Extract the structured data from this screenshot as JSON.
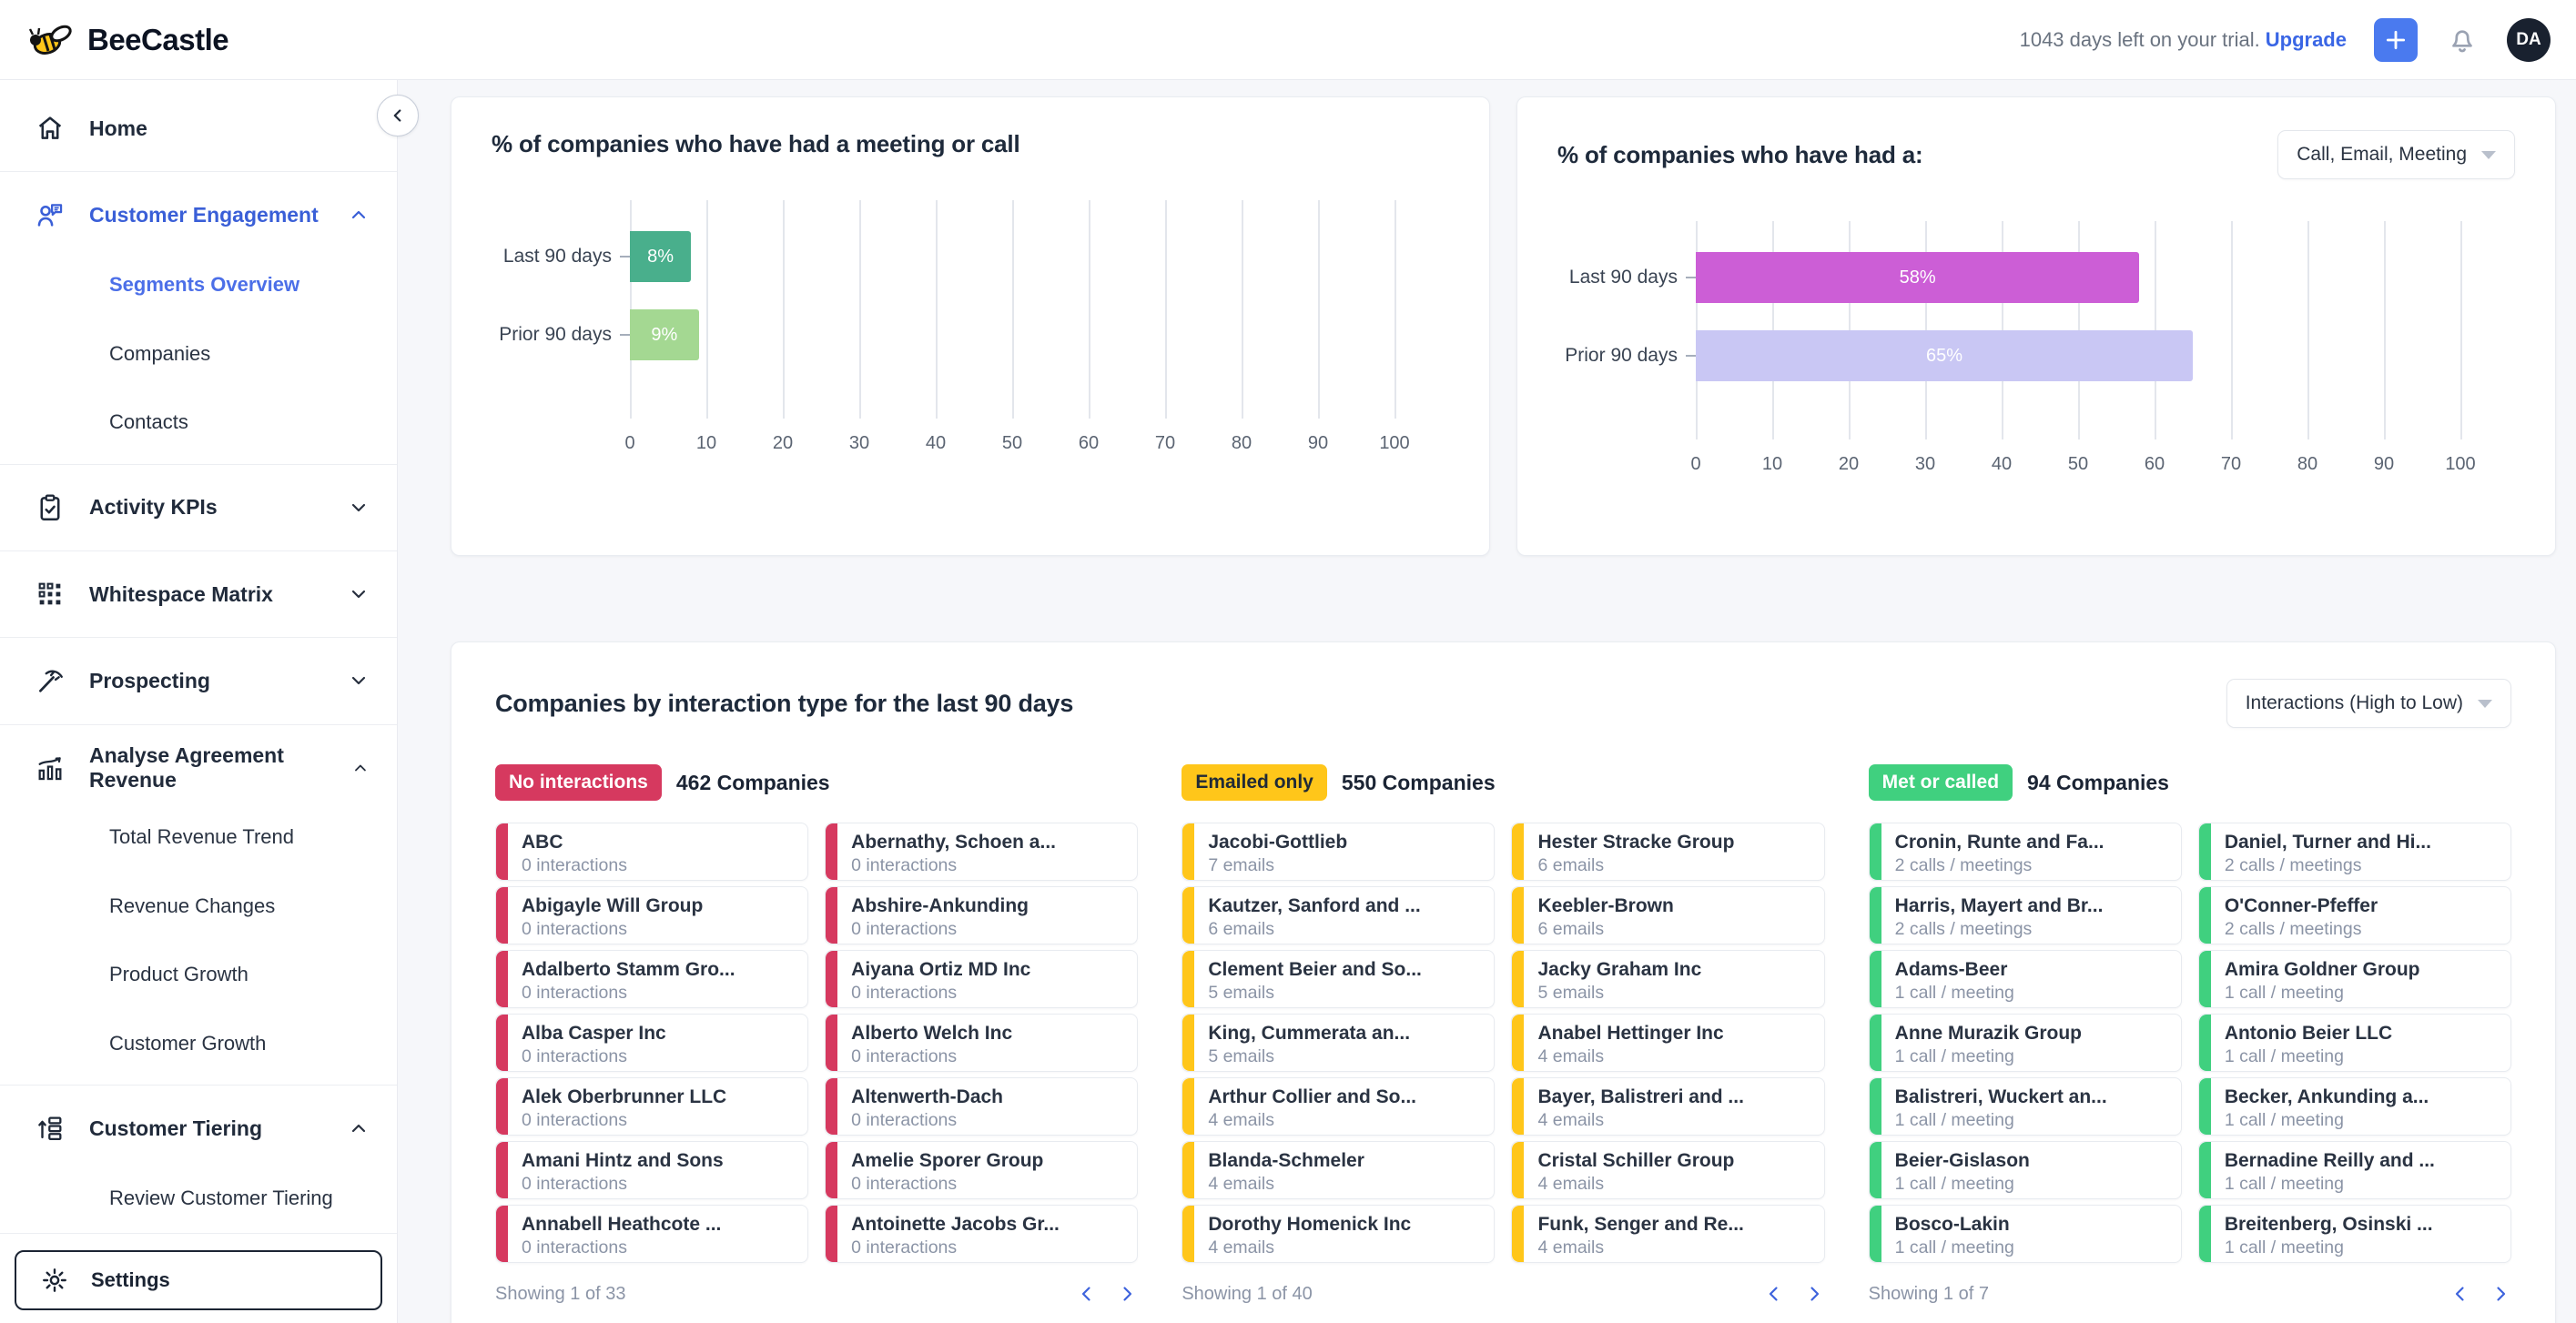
{
  "topbar": {
    "brand": "BeeCastle",
    "trial_text": "1043 days left on your trial.",
    "upgrade_label": "Upgrade",
    "avatar_initials": "DA"
  },
  "sidebar": {
    "items": [
      {
        "label": "Home"
      },
      {
        "label": "Customer Engagement",
        "expanded": true,
        "active": true,
        "children": [
          "Segments Overview",
          "Companies",
          "Contacts"
        ],
        "active_child": "Segments Overview"
      },
      {
        "label": "Activity KPIs",
        "expanded": false
      },
      {
        "label": "Whitespace Matrix",
        "expanded": false
      },
      {
        "label": "Prospecting",
        "expanded": false
      },
      {
        "label": "Analyse Agreement Revenue",
        "expanded": true,
        "children": [
          "Total Revenue Trend",
          "Revenue Changes",
          "Product Growth",
          "Customer Growth"
        ]
      },
      {
        "label": "Customer Tiering",
        "expanded": true,
        "children": [
          "Review Customer Tiering"
        ]
      }
    ],
    "settings_label": "Settings"
  },
  "chart_data": [
    {
      "type": "bar",
      "orientation": "horizontal",
      "title": "% of companies who have had a meeting or call",
      "categories": [
        "Last 90 days",
        "Prior 90 days"
      ],
      "values": [
        8,
        9
      ],
      "value_labels": [
        "8%",
        "9%"
      ],
      "colors": [
        "#49AF8C",
        "#A4D892"
      ],
      "xlim": [
        0,
        100
      ],
      "x_ticks": [
        0,
        10,
        20,
        30,
        40,
        50,
        60,
        70,
        80,
        90,
        100
      ],
      "grid": "vertical"
    },
    {
      "type": "bar",
      "orientation": "horizontal",
      "title": "% of companies who have had a:",
      "filter_label": "Call, Email, Meeting",
      "categories": [
        "Last 90 days",
        "Prior 90 days"
      ],
      "values": [
        58,
        65
      ],
      "value_labels": [
        "58%",
        "65%"
      ],
      "colors": [
        "#CC5ED6",
        "#C9C7F4"
      ],
      "xlim": [
        0,
        100
      ],
      "x_ticks": [
        0,
        10,
        20,
        30,
        40,
        50,
        60,
        70,
        80,
        90,
        100
      ],
      "grid": "vertical"
    }
  ],
  "section": {
    "title": "Companies by interaction type for the last 90 days",
    "sort_label": "Interactions (High to Low)",
    "groups": [
      {
        "badge": "No interactions",
        "badge_color": "#D6395F",
        "badge_text_color": "#FFFFFF",
        "count": "462 Companies",
        "footer": "Showing 1 of 33",
        "cards": [
          {
            "name": "ABC",
            "sub": "0 interactions"
          },
          {
            "name": "Abernathy, Schoen a...",
            "sub": "0 interactions"
          },
          {
            "name": "Abigayle Will Group",
            "sub": "0 interactions"
          },
          {
            "name": "Abshire-Ankunding",
            "sub": "0 interactions"
          },
          {
            "name": "Adalberto Stamm Gro...",
            "sub": "0 interactions"
          },
          {
            "name": "Aiyana Ortiz MD Inc",
            "sub": "0 interactions"
          },
          {
            "name": "Alba Casper Inc",
            "sub": "0 interactions"
          },
          {
            "name": "Alberto Welch Inc",
            "sub": "0 interactions"
          },
          {
            "name": "Alek Oberbrunner LLC",
            "sub": "0 interactions"
          },
          {
            "name": "Altenwerth-Dach",
            "sub": "0 interactions"
          },
          {
            "name": "Amani Hintz and Sons",
            "sub": "0 interactions"
          },
          {
            "name": "Amelie Sporer Group",
            "sub": "0 interactions"
          },
          {
            "name": "Annabell Heathcote ...",
            "sub": "0 interactions"
          },
          {
            "name": "Antoinette Jacobs Gr...",
            "sub": "0 interactions"
          }
        ]
      },
      {
        "badge": "Emailed only",
        "badge_color": "#FFC61A",
        "badge_text_color": "#202A37",
        "count": "550 Companies",
        "footer": "Showing 1 of 40",
        "cards": [
          {
            "name": "Jacobi-Gottlieb",
            "sub": "7 emails"
          },
          {
            "name": "Hester Stracke Group",
            "sub": "6 emails"
          },
          {
            "name": "Kautzer, Sanford and ...",
            "sub": "6 emails"
          },
          {
            "name": "Keebler-Brown",
            "sub": "6 emails"
          },
          {
            "name": "Clement Beier and So...",
            "sub": "5 emails"
          },
          {
            "name": "Jacky Graham Inc",
            "sub": "5 emails"
          },
          {
            "name": "King, Cummerata an...",
            "sub": "5 emails"
          },
          {
            "name": "Anabel Hettinger Inc",
            "sub": "4 emails"
          },
          {
            "name": "Arthur Collier and So...",
            "sub": "4 emails"
          },
          {
            "name": "Bayer, Balistreri and ...",
            "sub": "4 emails"
          },
          {
            "name": "Blanda-Schmeler",
            "sub": "4 emails"
          },
          {
            "name": "Cristal Schiller Group",
            "sub": "4 emails"
          },
          {
            "name": "Dorothy Homenick Inc",
            "sub": "4 emails"
          },
          {
            "name": "Funk, Senger and Re...",
            "sub": "4 emails"
          }
        ]
      },
      {
        "badge": "Met or called",
        "badge_color": "#40D07F",
        "badge_text_color": "#FFFFFF",
        "count": "94 Companies",
        "footer": "Showing 1 of 7",
        "cards": [
          {
            "name": "Cronin, Runte and Fa...",
            "sub": "2 calls / meetings"
          },
          {
            "name": "Daniel, Turner and Hi...",
            "sub": "2 calls / meetings"
          },
          {
            "name": "Harris, Mayert and Br...",
            "sub": "2 calls / meetings"
          },
          {
            "name": "O'Conner-Pfeffer",
            "sub": "2 calls / meetings"
          },
          {
            "name": "Adams-Beer",
            "sub": "1 call / meeting"
          },
          {
            "name": "Amira Goldner Group",
            "sub": "1 call / meeting"
          },
          {
            "name": "Anne Murazik Group",
            "sub": "1 call / meeting"
          },
          {
            "name": "Antonio Beier LLC",
            "sub": "1 call / meeting"
          },
          {
            "name": "Balistreri, Wuckert an...",
            "sub": "1 call / meeting"
          },
          {
            "name": "Becker, Ankunding a...",
            "sub": "1 call / meeting"
          },
          {
            "name": "Beier-Gislason",
            "sub": "1 call / meeting"
          },
          {
            "name": "Bernadine Reilly and ...",
            "sub": "1 call / meeting"
          },
          {
            "name": "Bosco-Lakin",
            "sub": "1 call / meeting"
          },
          {
            "name": "Breitenberg, Osinski ...",
            "sub": "1 call / meeting"
          }
        ]
      }
    ]
  },
  "colors": {
    "accent_blue": "#3A66E5",
    "sidebar_active_blue": "#3A5FD7",
    "no_interactions_red": "#D6395F",
    "emailed_only_yellow": "#FFC61A",
    "met_or_called_green": "#40D07F",
    "avatar_bg": "#19212F",
    "add_button_blue": "#4A7AEF"
  }
}
